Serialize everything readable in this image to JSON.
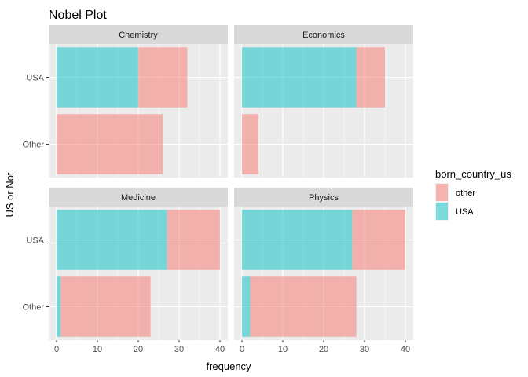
{
  "chart_data": {
    "type": "bar",
    "orientation": "horizontal",
    "stacked": true,
    "title": "Nobel Plot",
    "xlabel": "frequency",
    "ylabel": "US or Not",
    "xlim": [
      0,
      40
    ],
    "x_ticks": [
      0,
      10,
      20,
      30,
      40
    ],
    "categories": [
      "USA",
      "Other"
    ],
    "grid": true,
    "legend": {
      "title": "born_country_us",
      "position": "right",
      "entries": [
        {
          "label": "other",
          "color": "#F8766D"
        },
        {
          "label": "USA",
          "color": "#00BFC4"
        }
      ]
    },
    "series_order": [
      "USA",
      "other"
    ],
    "facets": [
      {
        "name": "Chemistry",
        "values": {
          "USA": {
            "USA": 20,
            "other": 12
          },
          "Other": {
            "USA": 0,
            "other": 26
          }
        }
      },
      {
        "name": "Economics",
        "values": {
          "USA": {
            "USA": 28,
            "other": 7
          },
          "Other": {
            "USA": 0,
            "other": 4
          }
        }
      },
      {
        "name": "Medicine",
        "values": {
          "USA": {
            "USA": 27,
            "other": 13
          },
          "Other": {
            "USA": 1,
            "other": 22
          }
        }
      },
      {
        "name": "Physics",
        "values": {
          "USA": {
            "USA": 27,
            "other": 13
          },
          "Other": {
            "USA": 2,
            "other": 26
          }
        }
      }
    ]
  }
}
